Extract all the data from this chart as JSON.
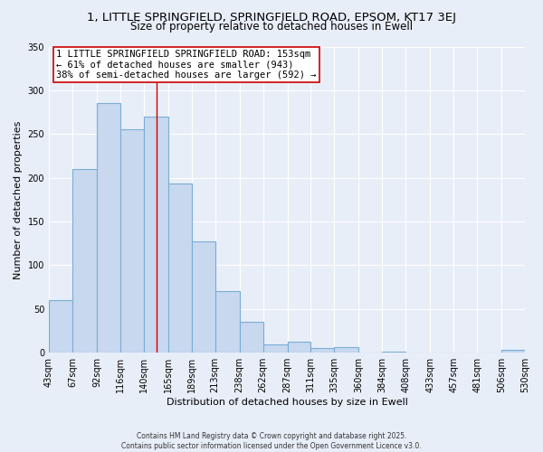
{
  "title": "1, LITTLE SPRINGFIELD, SPRINGFIELD ROAD, EPSOM, KT17 3EJ",
  "subtitle": "Size of property relative to detached houses in Ewell",
  "xlabel": "Distribution of detached houses by size in Ewell",
  "ylabel": "Number of detached properties",
  "bar_edges": [
    43,
    67,
    92,
    116,
    140,
    165,
    189,
    213,
    238,
    262,
    287,
    311,
    335,
    360,
    384,
    408,
    433,
    457,
    481,
    506,
    530
  ],
  "bar_heights": [
    60,
    210,
    285,
    255,
    270,
    193,
    127,
    70,
    35,
    10,
    13,
    5,
    6,
    0,
    1,
    0,
    0,
    0,
    0,
    3
  ],
  "bar_color": "#c8d8ee",
  "bar_edgecolor": "#7aaed4",
  "vline_x": 153,
  "vline_color": "#cc0000",
  "annotation_title": "1 LITTLE SPRINGFIELD SPRINGFIELD ROAD: 153sqm",
  "annotation_line2": "← 61% of detached houses are smaller (943)",
  "annotation_line3": "38% of semi-detached houses are larger (592) →",
  "annotation_box_edgecolor": "#cc0000",
  "annotation_box_facecolor": "#ffffff",
  "ylim": [
    0,
    350
  ],
  "xlim": [
    43,
    530
  ],
  "tick_labels": [
    "43sqm",
    "67sqm",
    "92sqm",
    "116sqm",
    "140sqm",
    "165sqm",
    "189sqm",
    "213sqm",
    "238sqm",
    "262sqm",
    "287sqm",
    "311sqm",
    "335sqm",
    "360sqm",
    "384sqm",
    "408sqm",
    "433sqm",
    "457sqm",
    "481sqm",
    "506sqm",
    "530sqm"
  ],
  "footer_line1": "Contains HM Land Registry data © Crown copyright and database right 2025.",
  "footer_line2": "Contains public sector information licensed under the Open Government Licence v3.0.",
  "bg_color": "#e8eef8",
  "title_fontsize": 9.5,
  "subtitle_fontsize": 8.5,
  "axis_label_fontsize": 8,
  "tick_fontsize": 7,
  "annotation_fontsize": 7.5
}
